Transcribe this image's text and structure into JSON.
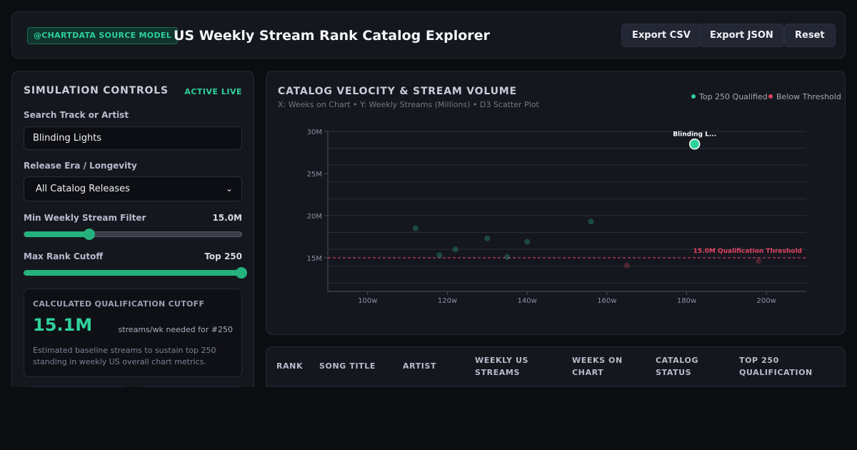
{
  "header": {
    "badge": "@CHARTDATA SOURCE MODEL",
    "title": "US Weekly Stream Rank Catalog Explorer",
    "buttons": {
      "export_csv": "Export CSV",
      "export_json": "Export JSON",
      "reset": "Reset"
    }
  },
  "controls": {
    "title": "SIMULATION CONTROLS",
    "status": "ACTIVE LIVE",
    "search": {
      "label": "Search Track or Artist",
      "value": "Blinding Lights",
      "placeholder": ""
    },
    "era": {
      "label": "Release Era / Longevity",
      "selected": "All Catalog Releases"
    },
    "min_stream": {
      "label": "Min Weekly Stream Filter",
      "value_text": "15.0M",
      "fraction": 0.3
    },
    "max_rank": {
      "label": "Max Rank Cutoff",
      "value_text": "Top 250",
      "fraction": 1.0
    },
    "cutoff": {
      "title": "CALCULATED QUALIFICATION CUTOFF",
      "value": "15.1M",
      "unit": "streams/wk needed for #250",
      "description": "Estimated baseline streams to sustain top 250 standing in weekly US overall chart metrics."
    }
  },
  "chart": {
    "title": "CATALOG VELOCITY & STREAM VOLUME",
    "subtitle": "X: Weeks on Chart • Y: Weekly Streams (Millions) • D3 Scatter Plot",
    "legend": [
      {
        "label": "Top 250 Qualified",
        "color": "#2fd19a"
      },
      {
        "label": "Below Threshold",
        "color": "#e0435f"
      }
    ]
  },
  "chart_data": {
    "type": "scatter",
    "title": "CATALOG VELOCITY & STREAM VOLUME",
    "x_ticks": [
      "100w",
      "120w",
      "140w",
      "160w",
      "180w",
      "200w"
    ],
    "y_ticks": [
      "15M",
      "20M",
      "25M",
      "30M"
    ],
    "xlim": [
      90,
      210
    ],
    "ylim": [
      11,
      30
    ],
    "threshold": {
      "value": 15.0,
      "label": "15.0M Qualification Threshold",
      "color": "#e0435f"
    },
    "highlight_label": "Blinding L...",
    "points": [
      {
        "x": 112,
        "y": 18.5,
        "status": "qualified",
        "highlight": false
      },
      {
        "x": 118,
        "y": 15.3,
        "status": "qualified",
        "highlight": false
      },
      {
        "x": 122,
        "y": 16.0,
        "status": "qualified",
        "highlight": false
      },
      {
        "x": 130,
        "y": 17.3,
        "status": "qualified",
        "highlight": false
      },
      {
        "x": 135,
        "y": 15.1,
        "status": "qualified",
        "highlight": false
      },
      {
        "x": 140,
        "y": 16.9,
        "status": "qualified",
        "highlight": false
      },
      {
        "x": 156,
        "y": 19.3,
        "status": "qualified",
        "highlight": false
      },
      {
        "x": 165,
        "y": 14.1,
        "status": "below",
        "highlight": false
      },
      {
        "x": 182,
        "y": 28.5,
        "status": "qualified",
        "highlight": true
      },
      {
        "x": 198,
        "y": 14.6,
        "status": "below",
        "highlight": false
      }
    ],
    "colors": {
      "qualified": "#2fd19a",
      "below": "#e0435f"
    }
  },
  "table": {
    "headers": [
      "RANK",
      "SONG TITLE",
      "ARTIST",
      "WEEKLY US STREAMS",
      "WEEKS ON CHART",
      "CATALOG STATUS",
      "TOP 250 QUALIFICATION"
    ]
  }
}
